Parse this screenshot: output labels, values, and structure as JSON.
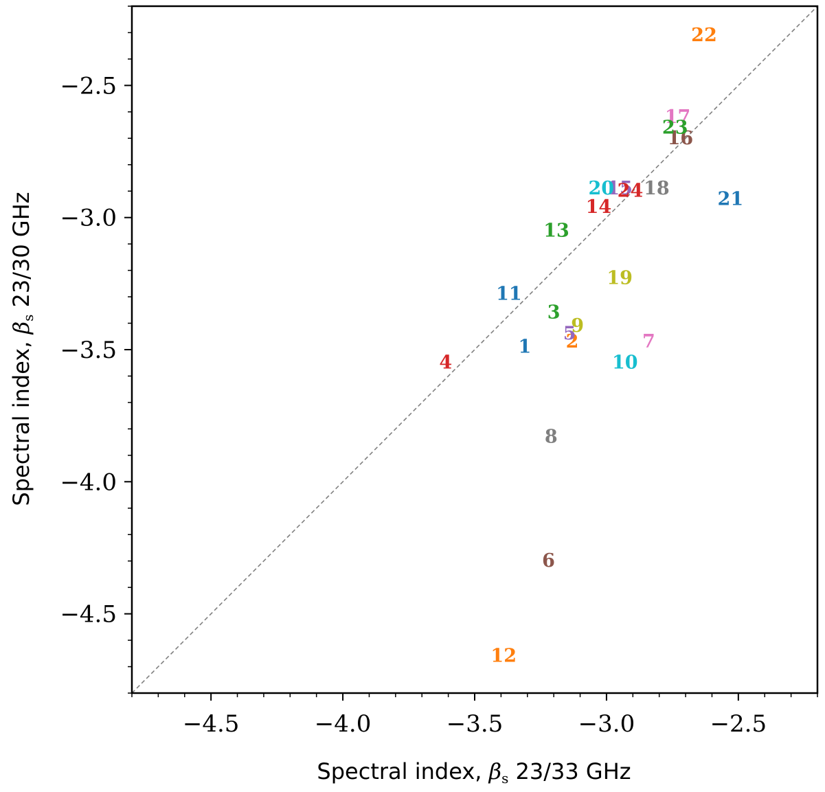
{
  "chart_data": {
    "type": "scatter",
    "xlabel": "Spectral index, βs 23/33 GHz",
    "ylabel": "Spectral index, βs 23/30 GHz",
    "xlabel_parts": {
      "prefix": "Spectral index, ",
      "symbol": "β",
      "sub": "s",
      "suffix": " 23/33 GHz"
    },
    "ylabel_parts": {
      "prefix": "Spectral index, ",
      "symbol": "β",
      "sub": "s",
      "suffix": " 23/30 GHz"
    },
    "xlim": [
      -4.8,
      -2.2
    ],
    "ylim": [
      -4.8,
      -2.2
    ],
    "xticks": [
      -4.5,
      -4.0,
      -3.5,
      -3.0,
      -2.5
    ],
    "yticks": [
      -2.5,
      -3.0,
      -3.5,
      -4.0,
      -4.5
    ],
    "xtick_labels": [
      "−4.5",
      "−4.0",
      "−3.5",
      "−3.0",
      "−2.5"
    ],
    "ytick_labels": [
      "−2.5",
      "−3.0",
      "−3.5",
      "−4.0",
      "−4.5"
    ],
    "reference_line": "y = x (dashed grey)",
    "grid": false,
    "points": [
      {
        "label": "1",
        "x": -3.31,
        "y": -3.49,
        "color": "#1f77b4"
      },
      {
        "label": "2",
        "x": -3.13,
        "y": -3.47,
        "color": "#ff7f0e"
      },
      {
        "label": "3",
        "x": -3.2,
        "y": -3.36,
        "color": "#2ca02c"
      },
      {
        "label": "4",
        "x": -3.61,
        "y": -3.55,
        "color": "#d62728"
      },
      {
        "label": "5",
        "x": -3.14,
        "y": -3.44,
        "color": "#9467bd"
      },
      {
        "label": "6",
        "x": -3.22,
        "y": -4.3,
        "color": "#8c564b"
      },
      {
        "label": "7",
        "x": -2.84,
        "y": -3.47,
        "color": "#e377c2"
      },
      {
        "label": "8",
        "x": -3.21,
        "y": -3.83,
        "color": "#7f7f7f"
      },
      {
        "label": "9",
        "x": -3.11,
        "y": -3.41,
        "color": "#bcbd22"
      },
      {
        "label": "10",
        "x": -2.93,
        "y": -3.55,
        "color": "#17becf"
      },
      {
        "label": "11",
        "x": -3.37,
        "y": -3.29,
        "color": "#1f77b4"
      },
      {
        "label": "12",
        "x": -3.39,
        "y": -4.66,
        "color": "#ff7f0e"
      },
      {
        "label": "13",
        "x": -3.19,
        "y": -3.05,
        "color": "#2ca02c"
      },
      {
        "label": "14",
        "x": -3.03,
        "y": -2.96,
        "color": "#d62728"
      },
      {
        "label": "15",
        "x": -2.95,
        "y": -2.89,
        "color": "#9467bd"
      },
      {
        "label": "16",
        "x": -2.72,
        "y": -2.7,
        "color": "#8c564b"
      },
      {
        "label": "17",
        "x": -2.73,
        "y": -2.62,
        "color": "#e377c2"
      },
      {
        "label": "18",
        "x": -2.81,
        "y": -2.89,
        "color": "#7f7f7f"
      },
      {
        "label": "19",
        "x": -2.95,
        "y": -3.23,
        "color": "#bcbd22"
      },
      {
        "label": "20",
        "x": -3.02,
        "y": -2.89,
        "color": "#17becf"
      },
      {
        "label": "21",
        "x": -2.53,
        "y": -2.93,
        "color": "#1f77b4"
      },
      {
        "label": "22",
        "x": -2.63,
        "y": -2.31,
        "color": "#ff7f0e"
      },
      {
        "label": "23",
        "x": -2.74,
        "y": -2.66,
        "color": "#2ca02c"
      },
      {
        "label": "24",
        "x": -2.91,
        "y": -2.9,
        "color": "#d62728"
      }
    ]
  }
}
